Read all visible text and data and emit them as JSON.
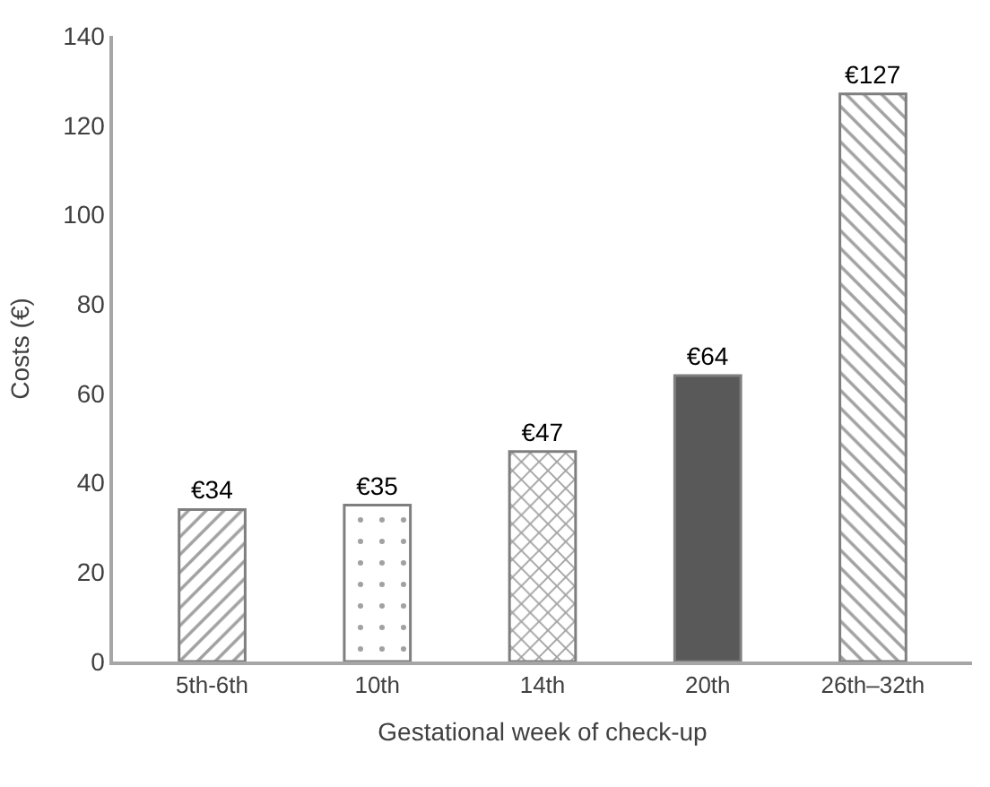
{
  "chart_data": {
    "type": "bar",
    "xlabel": "Gestational week of check-up",
    "ylabel": "Costs (€)",
    "categories": [
      "5th-6th",
      "10th",
      "14th",
      "20th",
      "26th–32th"
    ],
    "values": [
      34,
      35,
      47,
      64,
      127
    ],
    "value_labels": [
      "€34",
      "€35",
      "€47",
      "€64",
      "€127"
    ],
    "colors": [
      "#7f7f7f",
      "#7f7f7f",
      "#7f7f7f",
      "#595959",
      "#7f7f7f"
    ],
    "ylim": [
      0,
      140
    ],
    "yticks": [
      0,
      20,
      40,
      60,
      80,
      100,
      120,
      140
    ]
  }
}
